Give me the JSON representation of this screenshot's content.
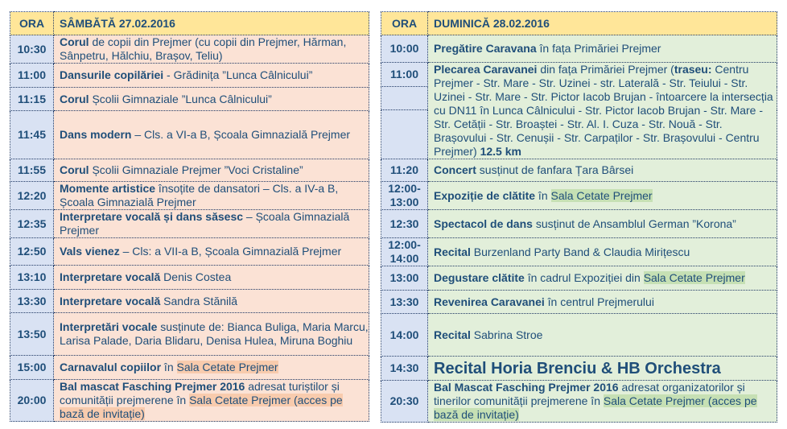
{
  "colors": {
    "header": "#ffe699",
    "time_col": "#d9e2f3",
    "saturday_bg": "#fbe2d5",
    "sunday_bg": "#e2efda",
    "saturday_highlight": "#f8cbad",
    "sunday_highlight": "#c6e0b4",
    "text": "#1f4e79"
  },
  "saturday": {
    "header_time": "ORA",
    "header_day": "SÂMBĂTĂ 27.02.2016",
    "rows": [
      {
        "time": "10:30",
        "parts": [
          {
            "t": "Corul",
            "b": true
          },
          {
            "t": " de copii din Prejmer (cu copii din Prejmer, Hărman, Sânpetru, Hălchiu, Brașov, Teliu)"
          }
        ]
      },
      {
        "time": "11:00",
        "parts": [
          {
            "t": "Dansurile copilăriei",
            "b": true
          },
          {
            "t": " - Grădinița ”Lunca Câlnicului”"
          }
        ]
      },
      {
        "time": "11:15",
        "parts": [
          {
            "t": "Corul",
            "b": true
          },
          {
            "t": " Școlii Gimnaziale ”Lunca Câlnicului”"
          }
        ]
      },
      {
        "time": "11:45",
        "parts": [
          {
            "t": "Dans modern",
            "b": true
          },
          {
            "t": " – Cls. a VI-a B, Școala Gimnazială Prejmer"
          }
        ]
      },
      {
        "time": "11:55",
        "parts": [
          {
            "t": "Corul",
            "b": true
          },
          {
            "t": " Școlii Gimnaziale Prejmer ”Voci Cristaline”"
          }
        ]
      },
      {
        "time": "12:20",
        "parts": [
          {
            "t": "Momente artistice",
            "b": true
          },
          {
            "t": " însoțite de dansatori – Cls. a IV-a B, Școala Gimnazială Prejmer"
          }
        ]
      },
      {
        "time": "12:35",
        "parts": [
          {
            "t": "Interpretare vocală și dans săsesc",
            "b": true
          },
          {
            "t": " – Școala Gimnazială Prejmer"
          }
        ]
      },
      {
        "time": "12:50",
        "parts": [
          {
            "t": "Vals vienez",
            "b": true
          },
          {
            "t": " – Cls: a VII-a B, Școala Gimnazială Prejmer"
          }
        ]
      },
      {
        "time": "13:10",
        "parts": [
          {
            "t": "Interpretare vocală",
            "b": true
          },
          {
            "t": " Denis Costea"
          }
        ]
      },
      {
        "time": "13:30",
        "parts": [
          {
            "t": "Interpretare vocală",
            "b": true
          },
          {
            "t": " Sandra Stănilă"
          }
        ]
      },
      {
        "time": "13:50",
        "parts": [
          {
            "t": "Interpretări vocale",
            "b": true
          },
          {
            "t": " susținute de: Bianca Buliga, Maria Marcu, Larisa Palade, Daria Blidaru, Denisa Hulea, Miruna Boghiu"
          }
        ]
      },
      {
        "time": "15:00",
        "parts": [
          {
            "t": "Carnavalul copiilor",
            "b": true
          },
          {
            "t": " în "
          },
          {
            "t": "Sala Cetate Prejmer",
            "h": true
          }
        ]
      },
      {
        "time": "20:00",
        "parts": [
          {
            "t": "Bal mascat Fasching Prejmer 2016",
            "b": true
          },
          {
            "t": " adresat turiștilor și comunității prejmerene în "
          },
          {
            "t": "Sala Cetate Prejmer (acces pe bază de invitație)",
            "h": true
          }
        ]
      }
    ]
  },
  "sunday": {
    "header_time": "ORA",
    "header_day": "DUMINICĂ 28.02.2016",
    "rows": [
      {
        "time": "10:00",
        "parts": [
          {
            "t": "Pregătire Caravana",
            "b": true
          },
          {
            "t": " în fața Primăriei Prejmer"
          }
        ]
      },
      {
        "time": "11:00",
        "span": 3,
        "parts": [
          {
            "t": "Plecarea Caravanei",
            "b": true
          },
          {
            "t": " din fața Primăriei Prejmer ("
          },
          {
            "t": "traseu:",
            "b": true
          },
          {
            "t": " Centru Prejmer - Str. Mare - Str. Uzinei - str. Laterală - Str. Teiului - Str. Uzinei - Str. Mare - Str. Pictor Iacob Brujan - întoarcere la intersecția cu DN11 în Lunca Câlnicului - Str. Pictor Iacob Brujan - Str. Mare - Str. Cetății - Str. Broaștei - Str. Al. I. Cuza - Str. Nouă - Str. Brașovului - Str. Cenușii - Str. Carpaților - Str. Brașovului - Centru Prejmer) "
          },
          {
            "t": "12.5 km",
            "b": true
          }
        ]
      },
      {
        "time": "11:20",
        "parts": [
          {
            "t": "Concert",
            "b": true
          },
          {
            "t": " susținut de fanfara Țara Bârsei"
          }
        ]
      },
      {
        "time": "12:00-13:00",
        "parts": [
          {
            "t": "Expoziție de clătite",
            "b": true
          },
          {
            "t": " în "
          },
          {
            "t": "Sala Cetate Prejmer",
            "h": true
          }
        ]
      },
      {
        "time": "12:30",
        "parts": [
          {
            "t": "Spectacol de dans",
            "b": true
          },
          {
            "t": " susținut de Ansamblul German ”Korona”"
          }
        ]
      },
      {
        "time": "12:00-14:00",
        "parts": [
          {
            "t": "Recital",
            "b": true
          },
          {
            "t": " Burzenland Party Band & Claudia Mirițescu"
          }
        ]
      },
      {
        "time": "13:00",
        "parts": [
          {
            "t": "Degustare clătite",
            "b": true
          },
          {
            "t": " în cadrul Expoziției din "
          },
          {
            "t": "Sala Cetate Prejmer",
            "h": true
          }
        ]
      },
      {
        "time": "13:30",
        "parts": [
          {
            "t": "Revenirea Caravanei",
            "b": true
          },
          {
            "t": " în centrul Prejmerului"
          }
        ]
      },
      {
        "time": "14:00",
        "parts": [
          {
            "t": "Recital",
            "b": true
          },
          {
            "t": " Sabrina Stroe"
          }
        ]
      },
      {
        "time": "14:30",
        "big": true,
        "parts": [
          {
            "t": "Recital Horia Brenciu & HB Orchestra",
            "b": true
          }
        ]
      },
      {
        "time": "20:30",
        "parts": [
          {
            "t": "Bal Mascat Fasching Prejmer 2016",
            "b": true
          },
          {
            "t": " adresat organizatorilor și tinerilor comunității prejmerene în "
          },
          {
            "t": "Sala Cetate Prejmer (acces pe bază de invitație)",
            "h": true
          }
        ]
      }
    ]
  }
}
